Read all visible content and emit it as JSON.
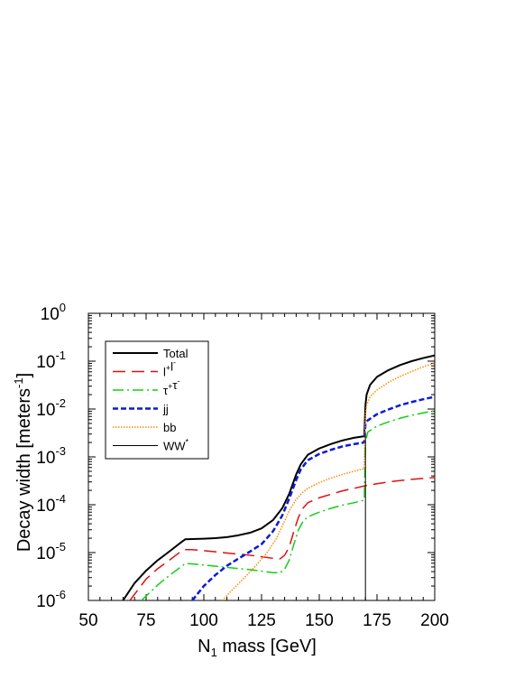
{
  "chart_data": {
    "type": "line",
    "xlabel": "N",
    "xlabel_sub": "1",
    "xlabel_rest": " mass   [GeV]",
    "ylabel": "Decay width  [meters",
    "ylabel_sup": "-1",
    "ylabel_end": "]",
    "xlim": [
      50,
      200
    ],
    "ylim": [
      1e-06,
      1
    ],
    "y_scale": "log",
    "x_ticks": [
      50,
      75,
      100,
      125,
      150,
      175,
      200
    ],
    "x_tick_labels": [
      "50",
      "75",
      "100",
      "125",
      "150",
      "175",
      "200"
    ],
    "y_tick_exponents": [
      -6,
      -5,
      -4,
      -3,
      -2,
      -1,
      0
    ],
    "y_tick_base": "10",
    "grid": false,
    "legend_position": "top-left",
    "series": [
      {
        "name": "Total",
        "label_parts": [
          [
            "Total",
            ""
          ]
        ],
        "color": "#000000",
        "dash": "",
        "width": 2,
        "points": [
          [
            65,
            1e-06
          ],
          [
            70,
            2.3e-06
          ],
          [
            75,
            4.2e-06
          ],
          [
            80,
            6.9e-06
          ],
          [
            85,
            1.05e-05
          ],
          [
            90,
            1.62e-05
          ],
          [
            92,
            1.9e-05
          ],
          [
            95,
            1.92e-05
          ],
          [
            100,
            1.95e-05
          ],
          [
            105,
            2e-05
          ],
          [
            110,
            2.1e-05
          ],
          [
            115,
            2.3e-05
          ],
          [
            120,
            2.6e-05
          ],
          [
            125,
            3.2e-05
          ],
          [
            130,
            4.8e-05
          ],
          [
            134,
            8.5e-05
          ],
          [
            137,
            0.00017
          ],
          [
            140,
            0.00043
          ],
          [
            142,
            0.0007
          ],
          [
            145,
            0.0011
          ],
          [
            150,
            0.0015
          ],
          [
            155,
            0.00185
          ],
          [
            160,
            0.0022
          ],
          [
            165,
            0.0025
          ],
          [
            169.5,
            0.0027
          ],
          [
            170,
            0.012
          ],
          [
            170.5,
            0.02
          ],
          [
            172,
            0.032
          ],
          [
            175,
            0.047
          ],
          [
            180,
            0.065
          ],
          [
            185,
            0.083
          ],
          [
            190,
            0.1
          ],
          [
            195,
            0.116
          ],
          [
            200,
            0.132
          ]
        ]
      },
      {
        "name": "l+l-",
        "label_parts": [
          [
            "l",
            "+"
          ],
          [
            "l",
            "-"
          ]
        ],
        "color": "#e01010",
        "dash": "14,7",
        "width": 1.5,
        "points": [
          [
            68,
            1e-06
          ],
          [
            75,
            2.8e-06
          ],
          [
            80,
            4.6e-06
          ],
          [
            85,
            6.9e-06
          ],
          [
            90,
            1.05e-05
          ],
          [
            92,
            1.15e-05
          ],
          [
            95,
            1.15e-05
          ],
          [
            100,
            1.1e-05
          ],
          [
            110,
            9.8e-06
          ],
          [
            120,
            8.8e-06
          ],
          [
            125,
            8.2e-06
          ],
          [
            130,
            7.6e-06
          ],
          [
            133,
            7.4e-06
          ],
          [
            135,
            8.8e-06
          ],
          [
            137,
            1.3e-05
          ],
          [
            139,
            2.8e-05
          ],
          [
            141,
            5.5e-05
          ],
          [
            143,
            8.5e-05
          ],
          [
            145,
            0.00011
          ],
          [
            150,
            0.00014
          ],
          [
            155,
            0.000165
          ],
          [
            160,
            0.000195
          ],
          [
            165,
            0.00022
          ],
          [
            170,
            0.00025
          ],
          [
            175,
            0.000275
          ],
          [
            180,
            0.0003
          ],
          [
            185,
            0.00032
          ],
          [
            190,
            0.00034
          ],
          [
            195,
            0.000355
          ],
          [
            200,
            0.00037
          ]
        ]
      },
      {
        "name": "τ+τ-",
        "label_parts": [
          [
            "τ",
            "+"
          ],
          [
            "τ",
            "-"
          ]
        ],
        "color": "#10d010",
        "dash": "12,4,2,4",
        "width": 1.5,
        "points": [
          [
            73,
            1e-06
          ],
          [
            80,
            2.1e-06
          ],
          [
            85,
            3.3e-06
          ],
          [
            90,
            5e-06
          ],
          [
            92,
            5.9e-06
          ],
          [
            95,
            5.8e-06
          ],
          [
            100,
            5.5e-06
          ],
          [
            110,
            4.9e-06
          ],
          [
            120,
            4.4e-06
          ],
          [
            125,
            4.1e-06
          ],
          [
            130,
            3.8e-06
          ],
          [
            133,
            3.8e-06
          ],
          [
            135,
            4.5e-06
          ],
          [
            137,
            7e-06
          ],
          [
            139,
            1.5e-05
          ],
          [
            141,
            3e-05
          ],
          [
            143,
            4.5e-05
          ],
          [
            145,
            5.6e-05
          ],
          [
            150,
            7e-05
          ],
          [
            155,
            8.4e-05
          ],
          [
            160,
            9.8e-05
          ],
          [
            165,
            0.00011
          ],
          [
            169.5,
            0.000125
          ],
          [
            170,
            0.002
          ],
          [
            171,
            0.0033
          ],
          [
            175,
            0.0044
          ],
          [
            180,
            0.0054
          ],
          [
            185,
            0.0064
          ],
          [
            190,
            0.0074
          ],
          [
            195,
            0.0083
          ],
          [
            200,
            0.0092
          ]
        ]
      },
      {
        "name": "jj",
        "label_parts": [
          [
            "jj",
            ""
          ]
        ],
        "color": "#0a1ad8",
        "dash": "6,3",
        "width": 2.5,
        "points": [
          [
            95,
            1e-06
          ],
          [
            100,
            2e-06
          ],
          [
            105,
            3.4e-06
          ],
          [
            110,
            5.3e-06
          ],
          [
            115,
            7.5e-06
          ],
          [
            120,
            1.05e-05
          ],
          [
            125,
            1.5e-05
          ],
          [
            130,
            2.8e-05
          ],
          [
            134,
            6e-05
          ],
          [
            137,
            0.000135
          ],
          [
            140,
            0.00033
          ],
          [
            142,
            0.00055
          ],
          [
            145,
            0.00085
          ],
          [
            150,
            0.00115
          ],
          [
            155,
            0.0014
          ],
          [
            160,
            0.00165
          ],
          [
            165,
            0.00185
          ],
          [
            169.5,
            0.002
          ],
          [
            170,
            0.005
          ],
          [
            171,
            0.0058
          ],
          [
            175,
            0.0078
          ],
          [
            180,
            0.0098
          ],
          [
            185,
            0.012
          ],
          [
            190,
            0.014
          ],
          [
            195,
            0.016
          ],
          [
            200,
            0.018
          ]
        ]
      },
      {
        "name": "bb",
        "label_parts": [
          [
            "bb",
            ""
          ]
        ],
        "color": "#ff8a00",
        "dash": "1.5,1.5",
        "width": 1.5,
        "points": [
          [
            108,
            1e-06
          ],
          [
            112,
            1.6e-06
          ],
          [
            117,
            2.8e-06
          ],
          [
            122,
            5e-06
          ],
          [
            127,
            9.5e-06
          ],
          [
            131,
            1.8e-05
          ],
          [
            134,
            3.6e-05
          ],
          [
            137,
            7.5e-05
          ],
          [
            140,
            0.00013
          ],
          [
            143,
            0.000185
          ],
          [
            145,
            0.00022
          ],
          [
            150,
            0.00029
          ],
          [
            155,
            0.00036
          ],
          [
            160,
            0.00043
          ],
          [
            165,
            0.0005
          ],
          [
            169.5,
            0.00057
          ],
          [
            170,
            0.008
          ],
          [
            170.5,
            0.012
          ],
          [
            172,
            0.018
          ],
          [
            175,
            0.025
          ],
          [
            180,
            0.036
          ],
          [
            185,
            0.048
          ],
          [
            190,
            0.061
          ],
          [
            195,
            0.076
          ],
          [
            200,
            0.092
          ]
        ]
      },
      {
        "name": "WW*",
        "label_parts": [
          [
            "WW",
            "*"
          ]
        ],
        "color": "#000000",
        "dash": "",
        "width": 1,
        "points": [
          [
            170,
            1e-06
          ],
          [
            170,
            0.003
          ]
        ]
      }
    ]
  }
}
